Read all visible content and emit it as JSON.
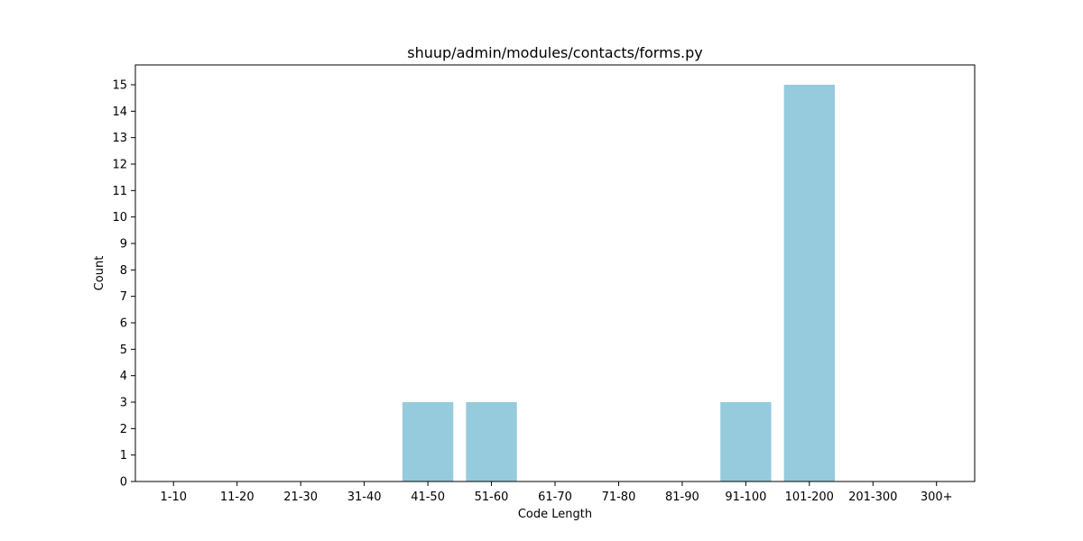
{
  "chart_data": {
    "type": "bar",
    "title": "shuup/admin/modules/contacts/forms.py",
    "xlabel": "Code Length",
    "ylabel": "Count",
    "categories": [
      "1-10",
      "11-20",
      "21-30",
      "31-40",
      "41-50",
      "51-60",
      "61-70",
      "71-80",
      "81-90",
      "91-100",
      "101-200",
      "201-300",
      "300+"
    ],
    "values": [
      0,
      0,
      0,
      0,
      3,
      3,
      0,
      0,
      0,
      3,
      15,
      0,
      0
    ],
    "ylim": [
      0,
      15.75
    ],
    "yticks": [
      0,
      1,
      2,
      3,
      4,
      5,
      6,
      7,
      8,
      9,
      10,
      11,
      12,
      13,
      14,
      15
    ],
    "grid": false,
    "bar_color": "#96cadd"
  }
}
